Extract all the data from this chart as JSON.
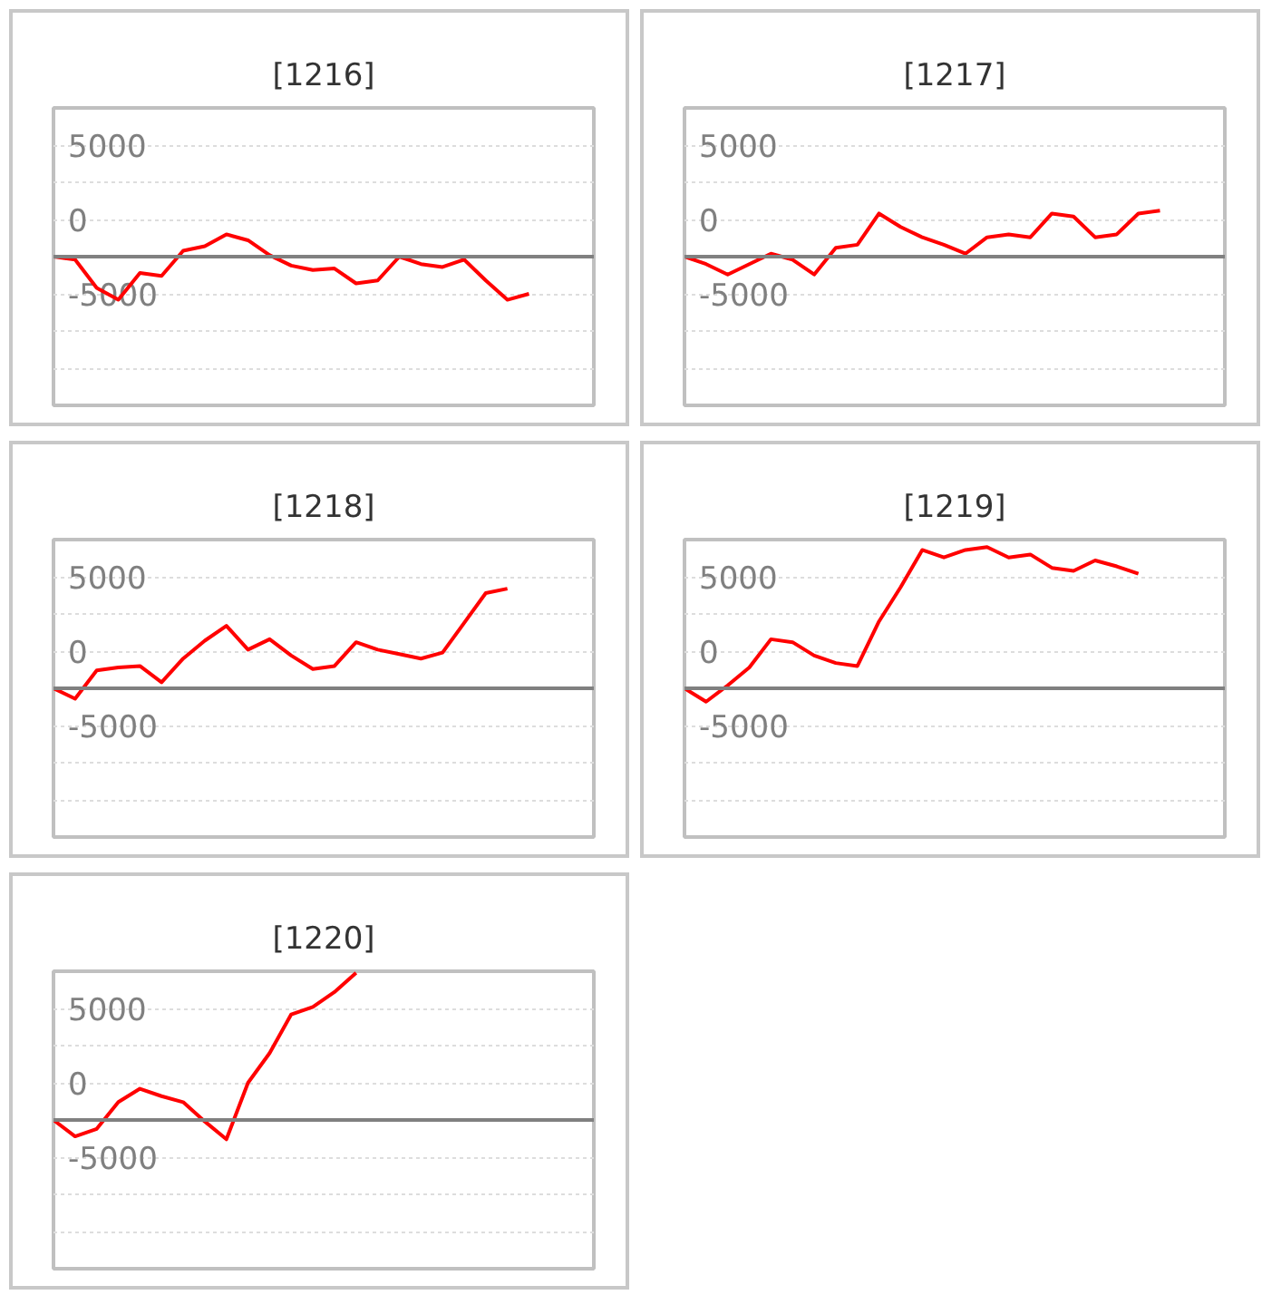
{
  "chart_data": [
    {
      "type": "line",
      "title": "[1216]",
      "categories": [
        null,
        null,
        null,
        null,
        null,
        null,
        null,
        null,
        null,
        null,
        null,
        null,
        null,
        null,
        null,
        null,
        null,
        null,
        null,
        null,
        null,
        null,
        null,
        null,
        null,
        null
      ],
      "color": "#ff0000",
      "values": [
        -2500,
        -2700,
        -4600,
        -5400,
        -3600,
        -3800,
        -2100,
        -1800,
        -1000,
        -1400,
        -2400,
        -3100,
        -3400,
        -3300,
        -4300,
        -4100,
        -2500,
        -3000,
        -3200,
        -2700,
        -4100,
        -5400,
        -5000,
        null,
        null,
        null
      ],
      "ylim": [
        -12500,
        7500
      ],
      "yticks": [
        {
          "value": 5000,
          "label": "5000"
        },
        {
          "value": 2500,
          "label": null
        },
        {
          "value": 0,
          "label": "0"
        },
        {
          "value": -2500,
          "label": null
        },
        {
          "value": -5000,
          "label": "-5000"
        },
        {
          "value": -7500,
          "label": null
        },
        {
          "value": -10000,
          "label": null
        }
      ],
      "grid": "y",
      "tick_labels": "y",
      "ref_lines": [
        {
          "axis": "y",
          "value": -2500,
          "color": "#808080"
        }
      ]
    },
    {
      "type": "line",
      "title": "[1217]",
      "categories": [
        null,
        null,
        null,
        null,
        null,
        null,
        null,
        null,
        null,
        null,
        null,
        null,
        null,
        null,
        null,
        null,
        null,
        null,
        null,
        null,
        null,
        null,
        null,
        null,
        null,
        null
      ],
      "color": "#ff0000",
      "values": [
        -2500,
        -3000,
        -3700,
        -3000,
        -2300,
        -2700,
        -3700,
        -1900,
        -1700,
        400,
        -500,
        -1200,
        -1700,
        -2300,
        -1200,
        -1000,
        -1200,
        400,
        200,
        -1200,
        -1000,
        400,
        600,
        null,
        null,
        null
      ],
      "ylim": [
        -12500,
        7500
      ],
      "yticks": [
        {
          "value": 5000,
          "label": "5000"
        },
        {
          "value": 2500,
          "label": null
        },
        {
          "value": 0,
          "label": "0"
        },
        {
          "value": -2500,
          "label": null
        },
        {
          "value": -5000,
          "label": "-5000"
        },
        {
          "value": -7500,
          "label": null
        },
        {
          "value": -10000,
          "label": null
        }
      ],
      "grid": "y",
      "tick_labels": "y",
      "ref_lines": [
        {
          "axis": "y",
          "value": -2500,
          "color": "#808080"
        }
      ]
    },
    {
      "type": "line",
      "title": "[1218]",
      "categories": [
        null,
        null,
        null,
        null,
        null,
        null,
        null,
        null,
        null,
        null,
        null,
        null,
        null,
        null,
        null,
        null,
        null,
        null,
        null,
        null,
        null,
        null,
        null,
        null,
        null,
        null
      ],
      "color": "#ff0000",
      "values": [
        -2500,
        -3200,
        -1300,
        -1100,
        -1000,
        -2100,
        -500,
        700,
        1700,
        100,
        800,
        -300,
        -1200,
        -1000,
        600,
        100,
        -200,
        -500,
        -100,
        1900,
        3900,
        4200,
        null,
        null,
        null,
        null
      ],
      "ylim": [
        -12500,
        7500
      ],
      "yticks": [
        {
          "value": 5000,
          "label": "5000"
        },
        {
          "value": 2500,
          "label": null
        },
        {
          "value": 0,
          "label": "0"
        },
        {
          "value": -2500,
          "label": null
        },
        {
          "value": -5000,
          "label": "-5000"
        },
        {
          "value": -7500,
          "label": null
        },
        {
          "value": -10000,
          "label": null
        }
      ],
      "grid": "y",
      "tick_labels": "y",
      "ref_lines": [
        {
          "axis": "y",
          "value": -2500,
          "color": "#808080"
        }
      ]
    },
    {
      "type": "line",
      "title": "[1219]",
      "categories": [
        null,
        null,
        null,
        null,
        null,
        null,
        null,
        null,
        null,
        null,
        null,
        null,
        null,
        null,
        null,
        null,
        null,
        null,
        null,
        null,
        null,
        null,
        null,
        null,
        null,
        null
      ],
      "color": "#ff0000",
      "values": [
        -2500,
        -3400,
        -2300,
        -1100,
        800,
        600,
        -300,
        -800,
        -1000,
        2000,
        4300,
        6800,
        6300,
        6800,
        7000,
        6300,
        6500,
        5600,
        5400,
        6100,
        5700,
        5200,
        null,
        null,
        null,
        null
      ],
      "ylim": [
        -12500,
        7500
      ],
      "yticks": [
        {
          "value": 5000,
          "label": "5000"
        },
        {
          "value": 2500,
          "label": null
        },
        {
          "value": 0,
          "label": "0"
        },
        {
          "value": -2500,
          "label": null
        },
        {
          "value": -5000,
          "label": "-5000"
        },
        {
          "value": -7500,
          "label": null
        },
        {
          "value": -10000,
          "label": null
        }
      ],
      "grid": "y",
      "tick_labels": "y",
      "ref_lines": [
        {
          "axis": "y",
          "value": -2500,
          "color": "#808080"
        }
      ]
    },
    {
      "type": "line",
      "title": "[1220]",
      "categories": [
        null,
        null,
        null,
        null,
        null,
        null,
        null,
        null,
        null,
        null,
        null,
        null,
        null,
        null,
        null,
        null,
        null,
        null,
        null,
        null,
        null,
        null,
        null,
        null,
        null,
        null
      ],
      "color": "#ff0000",
      "values": [
        -2500,
        -3600,
        -3100,
        -1300,
        -400,
        -900,
        -1300,
        -2600,
        -3800,
        0,
        2000,
        4600,
        5100,
        6100,
        7400,
        null,
        null,
        null,
        null,
        null,
        null,
        null,
        null,
        null,
        null,
        null
      ],
      "ylim": [
        -12500,
        7500
      ],
      "yticks": [
        {
          "value": 5000,
          "label": "5000"
        },
        {
          "value": 2500,
          "label": null
        },
        {
          "value": 0,
          "label": "0"
        },
        {
          "value": -2500,
          "label": null
        },
        {
          "value": -5000,
          "label": "-5000"
        },
        {
          "value": -7500,
          "label": null
        },
        {
          "value": -10000,
          "label": null
        }
      ],
      "grid": "y",
      "tick_labels": "y",
      "ref_lines": [
        {
          "axis": "y",
          "value": -2500,
          "color": "#808080"
        }
      ]
    }
  ]
}
